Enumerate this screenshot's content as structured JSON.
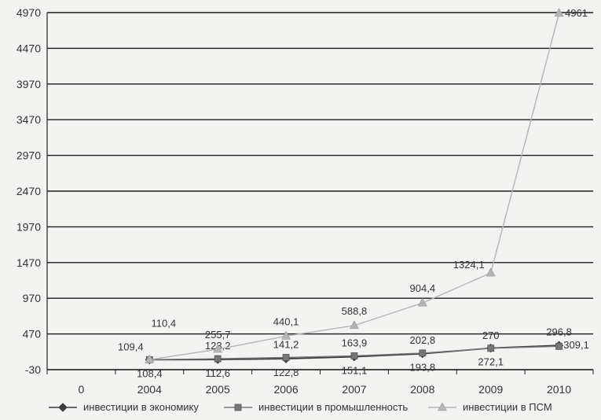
{
  "chart_data": {
    "type": "line",
    "categories": [
      "0",
      "2004",
      "2005",
      "2006",
      "2007",
      "2008",
      "2009",
      "2010"
    ],
    "y_ticks": [
      -30,
      470,
      970,
      1470,
      1970,
      2470,
      2970,
      3470,
      3970,
      4470,
      4970
    ],
    "ylim": [
      -30,
      4970
    ],
    "grid": true,
    "legend_position": "bottom",
    "series": [
      {
        "name": "инвестиции в экономику",
        "marker": "diamond",
        "color": "#3a3a3a",
        "values": [
          null,
          108.4,
          112.6,
          122.8,
          151.1,
          193.8,
          272.1,
          309.1
        ],
        "labels": [
          "",
          "108,4",
          "112,6",
          "122,8",
          "151,1",
          "193,8",
          "272,1",
          "309,1"
        ]
      },
      {
        "name": "инвестиции в промышленность",
        "marker": "square",
        "color": "#777777",
        "values": [
          null,
          109.4,
          123.2,
          141.2,
          163.9,
          202.8,
          270,
          296.8
        ],
        "labels": [
          "",
          "109,4",
          "123,2",
          "141,2",
          "163,9",
          "202,8",
          "270",
          "296,8"
        ]
      },
      {
        "name": "инвестиции в ПСМ",
        "marker": "triangle",
        "color": "#b5b5b5",
        "values": [
          null,
          110.4,
          255.7,
          440.1,
          588.8,
          904.4,
          1324.1,
          4961
        ],
        "labels": [
          "",
          "110,4",
          "255,7",
          "440,1",
          "588,8",
          "904,4",
          "1324,1",
          "4961"
        ]
      }
    ]
  }
}
